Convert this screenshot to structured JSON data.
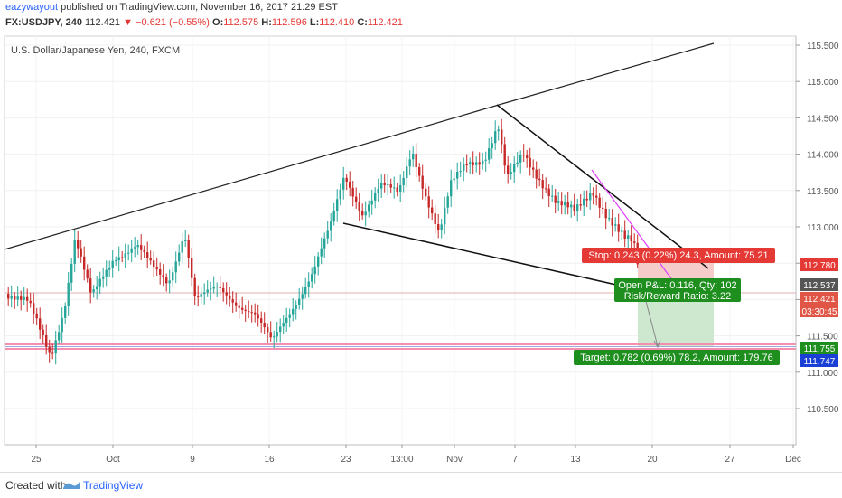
{
  "header": {
    "username": "eazywayout",
    "published_text": "published on TradingView.com, November 16, 2017 21:29 EST",
    "symbol": "FX:USDJPY, 240",
    "last": "112.421",
    "arrow": "▼",
    "change": "−0.621 (−0.55%)",
    "o_label": "O:",
    "o_value": "112.575",
    "h_label": "H:",
    "h_value": "112.596",
    "l_label": "L:",
    "l_value": "112.410",
    "c_label": "C:",
    "c_value": "112.421"
  },
  "chart_title": "U.S. Dollar/Japanese Yen, 240, FXCM",
  "price_axis": {
    "ticks": [
      "115.500",
      "115.000",
      "114.500",
      "114.000",
      "113.500",
      "113.000",
      "112.500",
      "112.000",
      "111.500",
      "111.000",
      "110.500"
    ],
    "labels": {
      "stop_price": "112.780",
      "entry_price": "112.537",
      "last_price": "112.421",
      "countdown": "03:30:45",
      "target_price": "111.755",
      "target_low": "111.747"
    }
  },
  "time_axis": {
    "ticks": [
      "25",
      "Oct",
      "9",
      "16",
      "23",
      "13:00",
      "Nov",
      "7",
      "13",
      "20",
      "27",
      "Dec"
    ]
  },
  "position_tool": {
    "stop_text": "Stop: 0.243 (0.22%) 24.3, Amount: 75.21",
    "open_pl_text": "Open P&L: 0.116, Qty: 102",
    "rr_text": "Risk/Reward Ratio: 3.22",
    "target_text": "Target: 0.782 (0.69%) 78.2, Amount: 179.76"
  },
  "colors": {
    "up_candle": "#26a69a",
    "down_candle": "#c62828",
    "stop_bg": "#e53935",
    "target_bg": "#1e8e1e",
    "brand_blue": "#2962ff"
  },
  "footer": {
    "created_with": "Created with",
    "brand": "TradingView"
  }
}
